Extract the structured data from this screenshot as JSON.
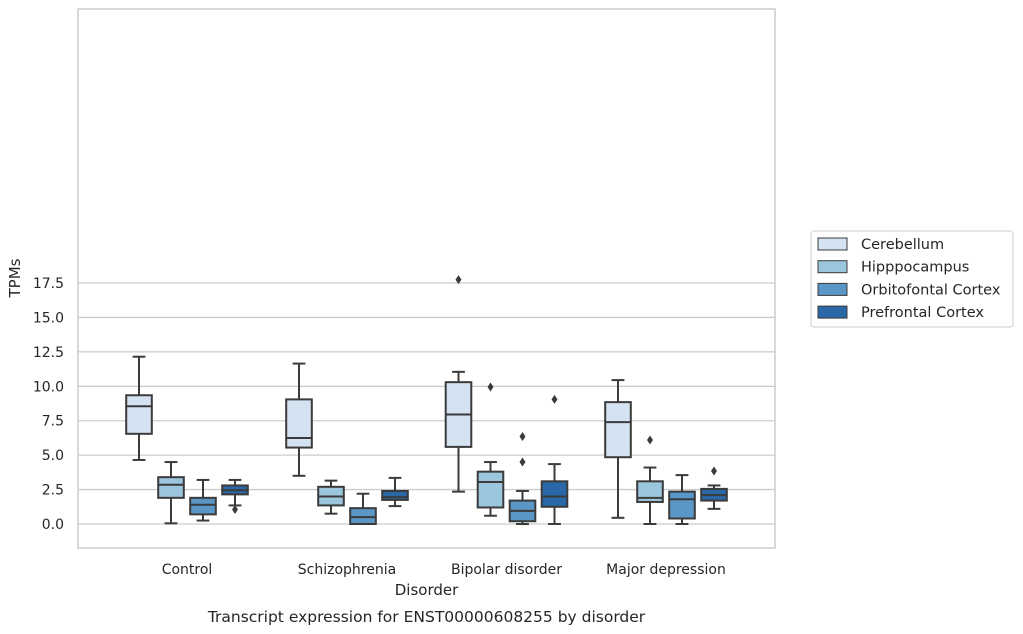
{
  "chart_data": {
    "type": "box",
    "caption": "Transcript expression for ENST00000608255 by disorder",
    "xlabel": "Disorder",
    "ylabel": "TPMs",
    "ylim": [
      -0.85,
      18.6
    ],
    "yticks": [
      "0.0",
      "2.5",
      "5.0",
      "7.5",
      "10.0",
      "12.5",
      "15.0",
      "17.5"
    ],
    "ytick_values": [
      0,
      2.5,
      5,
      7.5,
      10,
      12.5,
      15,
      17.5
    ],
    "grid": "horizontal",
    "legend_position": "right",
    "categories": [
      "Control",
      "Schizophrenia",
      "Bipolar disorder",
      "Major depression"
    ],
    "series": [
      {
        "name": "Cerebellum",
        "color": "#d4e2f1",
        "boxes": [
          {
            "whislo": 4.65,
            "q1": 6.55,
            "med": 8.55,
            "q3": 9.35,
            "whishi": 12.15,
            "fliers": []
          },
          {
            "whislo": 3.5,
            "q1": 5.55,
            "med": 6.25,
            "q3": 9.05,
            "whishi": 11.65,
            "fliers": []
          },
          {
            "whislo": 2.35,
            "q1": 5.6,
            "med": 7.95,
            "q3": 10.3,
            "whishi": 11.05,
            "fliers": [
              17.75
            ]
          },
          {
            "whislo": 0.45,
            "q1": 4.85,
            "med": 7.4,
            "q3": 8.85,
            "whishi": 10.45,
            "fliers": []
          }
        ]
      },
      {
        "name": "Hipppocampus",
        "color": "#9cc5de",
        "boxes": [
          {
            "whislo": 0.05,
            "q1": 1.9,
            "med": 2.85,
            "q3": 3.4,
            "whishi": 4.5,
            "fliers": []
          },
          {
            "whislo": 0.75,
            "q1": 1.35,
            "med": 2.0,
            "q3": 2.7,
            "whishi": 3.15,
            "fliers": []
          },
          {
            "whislo": 0.6,
            "q1": 1.2,
            "med": 3.05,
            "q3": 3.8,
            "whishi": 4.5,
            "fliers": [
              9.95
            ]
          },
          {
            "whislo": 0.0,
            "q1": 1.6,
            "med": 1.9,
            "q3": 3.1,
            "whishi": 4.1,
            "fliers": [
              6.1
            ]
          }
        ]
      },
      {
        "name": "Orbitofontal Cortex",
        "color": "#5b97c6",
        "boxes": [
          {
            "whislo": 0.25,
            "q1": 0.7,
            "med": 1.4,
            "q3": 1.9,
            "whishi": 3.2,
            "fliers": []
          },
          {
            "whislo": 0.0,
            "q1": 0.0,
            "med": 0.5,
            "q3": 1.15,
            "whishi": 2.2,
            "fliers": []
          },
          {
            "whislo": 0.0,
            "q1": 0.2,
            "med": 0.95,
            "q3": 1.7,
            "whishi": 2.4,
            "fliers": [
              4.5,
              6.35
            ]
          },
          {
            "whislo": 0.0,
            "q1": 0.4,
            "med": 1.8,
            "q3": 2.35,
            "whishi": 3.55,
            "fliers": []
          }
        ]
      },
      {
        "name": "Prefrontal Cortex",
        "color": "#2a68a8",
        "boxes": [
          {
            "whislo": 1.35,
            "q1": 2.15,
            "med": 2.45,
            "q3": 2.8,
            "whishi": 3.2,
            "fliers": [
              1.05
            ]
          },
          {
            "whislo": 1.3,
            "q1": 1.75,
            "med": 1.95,
            "q3": 2.4,
            "whishi": 3.35,
            "fliers": []
          },
          {
            "whislo": 0.0,
            "q1": 1.25,
            "med": 2.0,
            "q3": 3.1,
            "whishi": 4.35,
            "fliers": [
              9.05
            ]
          },
          {
            "whislo": 1.1,
            "q1": 1.7,
            "med": 2.1,
            "q3": 2.55,
            "whishi": 2.8,
            "fliers": [
              3.85
            ]
          }
        ]
      }
    ]
  }
}
